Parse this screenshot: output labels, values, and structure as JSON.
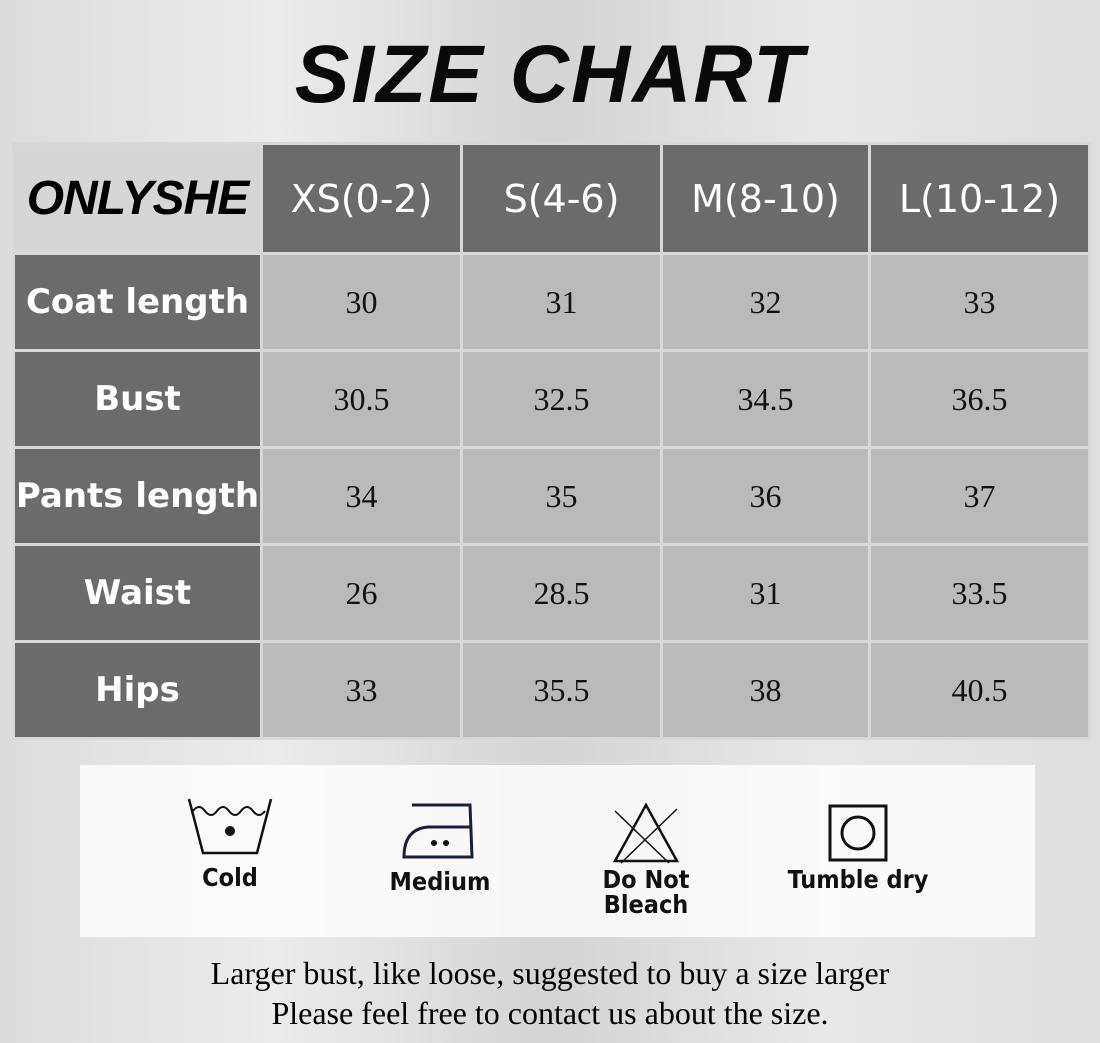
{
  "title": "SIZE CHART",
  "brand": "ONLYSHE",
  "sizes": [
    "XS(0-2)",
    "S(4-6)",
    "M(8-10)",
    "L(10-12)"
  ],
  "rows": [
    {
      "label": "Coat length",
      "values": [
        "30",
        "31",
        "32",
        "33"
      ]
    },
    {
      "label": "Bust",
      "values": [
        "30.5",
        "32.5",
        "34.5",
        "36.5"
      ]
    },
    {
      "label": "Pants length",
      "values": [
        "34",
        "35",
        "36",
        "37"
      ]
    },
    {
      "label": "Waist",
      "values": [
        "26",
        "28.5",
        "31",
        "33.5"
      ]
    },
    {
      "label": "Hips",
      "values": [
        "33",
        "35.5",
        "38",
        "40.5"
      ]
    }
  ],
  "care": [
    {
      "icon": "wash-cold-icon",
      "label": "Cold"
    },
    {
      "icon": "iron-medium-icon",
      "label": "Medium"
    },
    {
      "icon": "do-not-bleach-icon",
      "label": "Do Not Bleach"
    },
    {
      "icon": "tumble-dry-icon",
      "label": "Tumble dry"
    }
  ],
  "notes": [
    "Larger bust, like loose, suggested to buy a size larger",
    "Please feel free to contact us about the size."
  ]
}
